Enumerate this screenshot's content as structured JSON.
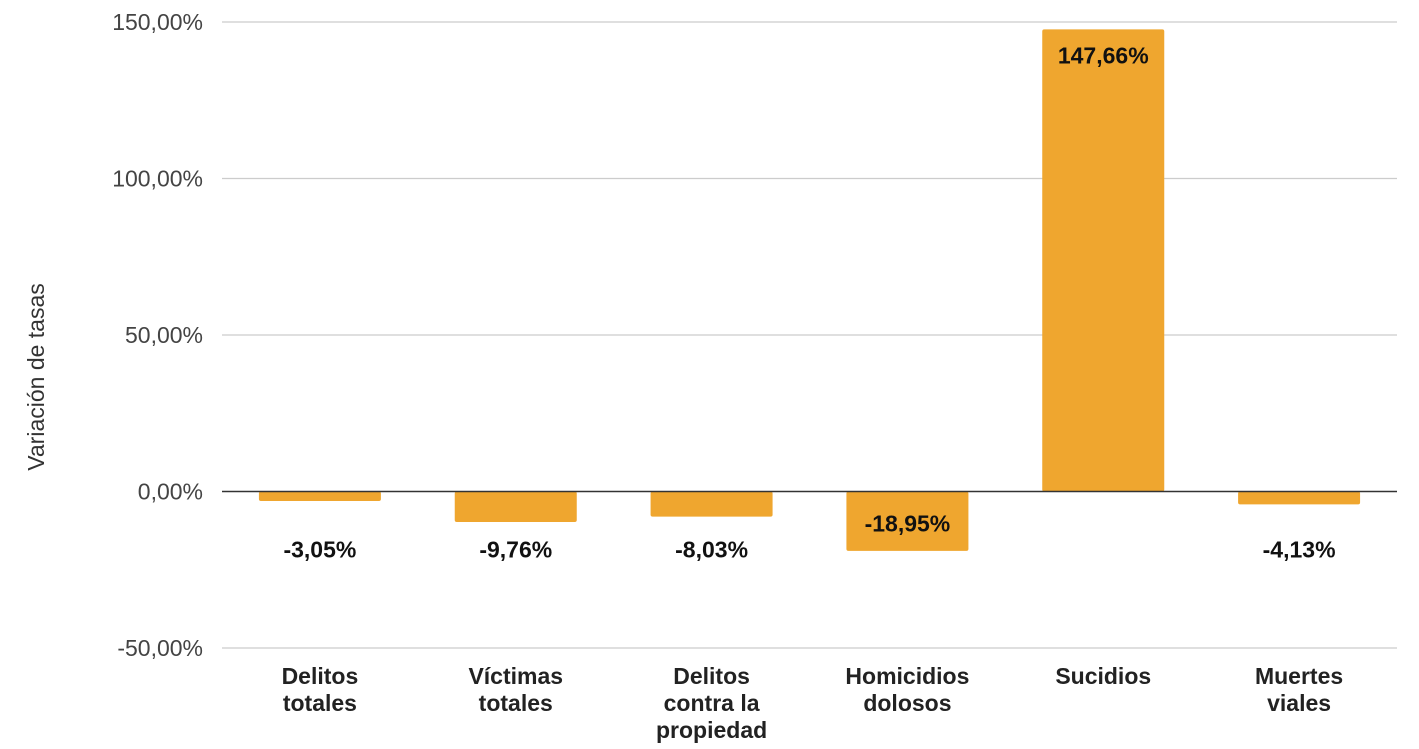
{
  "chart_data": {
    "type": "bar",
    "title": "",
    "xlabel": "",
    "ylabel": "Variación de tasas",
    "ylim": [
      -50,
      150
    ],
    "yticks": [
      "-50,00%",
      "0,00%",
      "50,00%",
      "100,00%",
      "150,00%"
    ],
    "ytick_values": [
      -50,
      0,
      50,
      100,
      150
    ],
    "grid": true,
    "bar_color": "#EFA62F",
    "categories": [
      [
        "Delitos",
        "totales"
      ],
      [
        "Víctimas",
        "totales"
      ],
      [
        "Delitos",
        "contra la",
        "propiedad"
      ],
      [
        "Homicidios",
        "dolosos"
      ],
      [
        "Sucidios"
      ],
      [
        "Muertes",
        "viales"
      ]
    ],
    "values": [
      -3.05,
      -9.76,
      -8.03,
      -18.95,
      147.66,
      -4.13
    ],
    "data_labels": [
      "-3,05%",
      "-9,76%",
      "-8,03%",
      "-18,95%",
      "147,66%",
      "-4,13%"
    ]
  }
}
